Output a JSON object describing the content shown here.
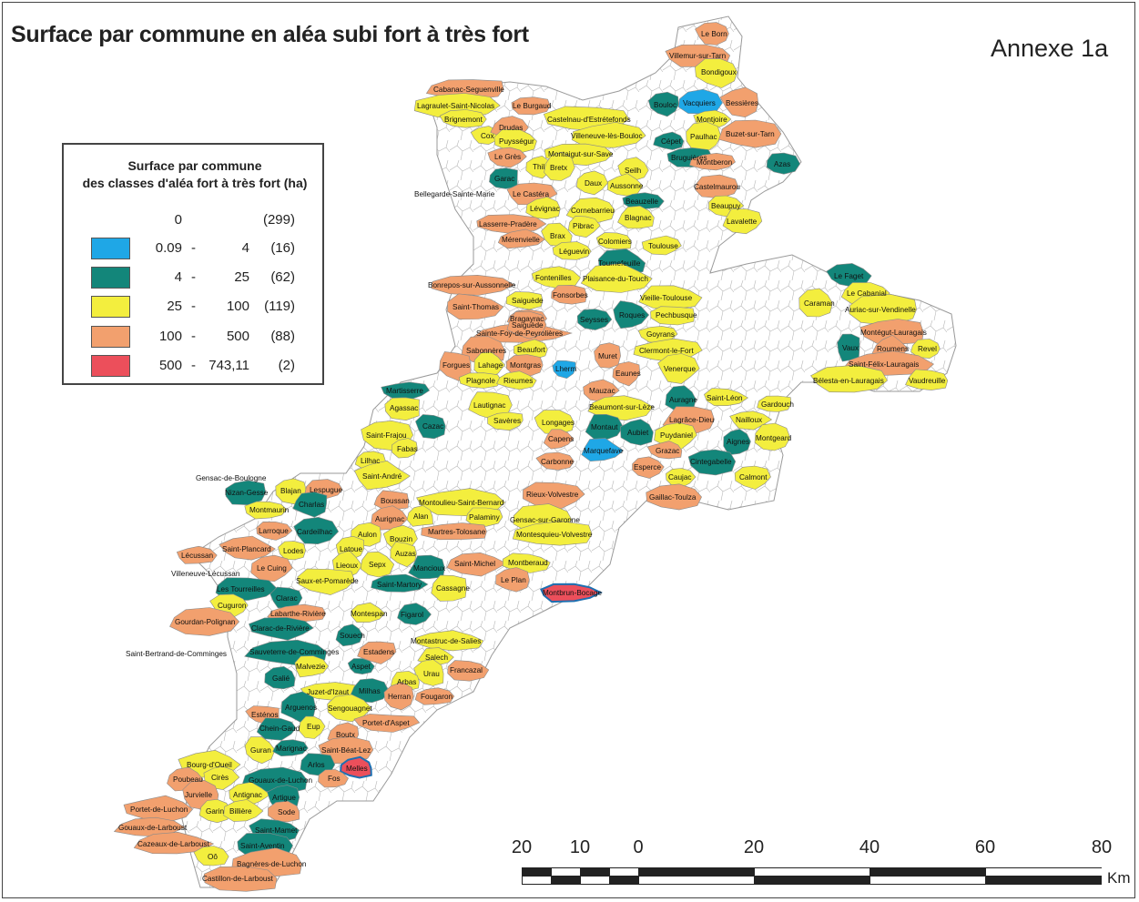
{
  "title": "Surface par commune en aléa subi  fort à très fort",
  "annex": "Annexe 1a",
  "legend": {
    "title_line1": "Surface par commune",
    "title_line2": "des classes d'aléa fort à très fort (ha)",
    "classes": [
      {
        "min": "0",
        "max": "",
        "count": "(299)",
        "color": "#ffffff",
        "swatch": false
      },
      {
        "min": "0.09",
        "max": "4",
        "count": "(16)",
        "color": "#1fa7e6",
        "swatch": true
      },
      {
        "min": "4",
        "max": "25",
        "count": "(62)",
        "color": "#13867a",
        "swatch": true
      },
      {
        "min": "25",
        "max": "100",
        "count": "(119)",
        "color": "#f3ee3e",
        "swatch": true
      },
      {
        "min": "100",
        "max": "500",
        "count": "(88)",
        "color": "#f2a06e",
        "swatch": true
      },
      {
        "min": "500",
        "max": "743,11",
        "count": "(2)",
        "color": "#ec4f5b",
        "swatch": true
      }
    ]
  },
  "communes": [
    {
      "name": "Le Born",
      "cls": 4
    },
    {
      "name": "Villemur-sur-Tarn",
      "cls": 4
    },
    {
      "name": "Bondigoux",
      "cls": 3
    },
    {
      "name": "Cabanac-Seguenville",
      "cls": 4
    },
    {
      "name": "Lagraulet-Saint-Nicolas",
      "cls": 3
    },
    {
      "name": "Le Burgaud",
      "cls": 4
    },
    {
      "name": "Bouloc",
      "cls": 2
    },
    {
      "name": "Vacquiers",
      "cls": 1
    },
    {
      "name": "Bessières",
      "cls": 4
    },
    {
      "name": "Brignemont",
      "cls": 3
    },
    {
      "name": "Castelnau-d'Estrétefonds",
      "cls": 3
    },
    {
      "name": "Montjoire",
      "cls": 3
    },
    {
      "name": "Cox",
      "cls": 3
    },
    {
      "name": "Drudas",
      "cls": 4
    },
    {
      "name": "Villeneuve-lès-Bouloc",
      "cls": 3
    },
    {
      "name": "Paulhac",
      "cls": 3
    },
    {
      "name": "Buzet-sur-Tarn",
      "cls": 4
    },
    {
      "name": "Puysségur",
      "cls": 3
    },
    {
      "name": "Cépet",
      "cls": 2
    },
    {
      "name": "Le Grès",
      "cls": 4
    },
    {
      "name": "Montaigut-sur-Save",
      "cls": 3
    },
    {
      "name": "Bruguières",
      "cls": 2
    },
    {
      "name": "Montberon",
      "cls": 4
    },
    {
      "name": "Azas",
      "cls": 2
    },
    {
      "name": "Thil",
      "cls": 3
    },
    {
      "name": "Bretx",
      "cls": 3
    },
    {
      "name": "Seilh",
      "cls": 3
    },
    {
      "name": "Garac",
      "cls": 2
    },
    {
      "name": "Daux",
      "cls": 3
    },
    {
      "name": "Aussonne",
      "cls": 3
    },
    {
      "name": "Castelmaurou",
      "cls": 4
    },
    {
      "name": "Bellegarde-Sainte-Marie",
      "cls": 0
    },
    {
      "name": "Le Castéra",
      "cls": 4
    },
    {
      "name": "Beauzelle",
      "cls": 2
    },
    {
      "name": "Beaupuy",
      "cls": 3
    },
    {
      "name": "Lévignac",
      "cls": 3
    },
    {
      "name": "Cornebarrieu",
      "cls": 3
    },
    {
      "name": "Blagnac",
      "cls": 3
    },
    {
      "name": "Lavalette",
      "cls": 3
    },
    {
      "name": "Lasserre-Pradère",
      "cls": 4
    },
    {
      "name": "Pibrac",
      "cls": 3
    },
    {
      "name": "Mérenvielle",
      "cls": 4
    },
    {
      "name": "Brax",
      "cls": 3
    },
    {
      "name": "Colomiers",
      "cls": 3
    },
    {
      "name": "Toulouse",
      "cls": 3
    },
    {
      "name": "Léguevin",
      "cls": 3
    },
    {
      "name": "Tournefeuille",
      "cls": 2
    },
    {
      "name": "Fontenilles",
      "cls": 3
    },
    {
      "name": "Plaisance-du-Touch",
      "cls": 3
    },
    {
      "name": "Bonrepos-sur-Aussonnelle",
      "cls": 4
    },
    {
      "name": "Fonsorbes",
      "cls": 4
    },
    {
      "name": "Vieille-Toulouse",
      "cls": 3
    },
    {
      "name": "Saiguède",
      "cls": 3
    },
    {
      "name": "Saint-Thomas",
      "cls": 4
    },
    {
      "name": "Roques",
      "cls": 2
    },
    {
      "name": "Pechbusque",
      "cls": 3
    },
    {
      "name": "Bragayrac",
      "cls": 4
    },
    {
      "name": "Seysses",
      "cls": 2
    },
    {
      "name": "Sainte-Foy-de-Peyrolières",
      "cls": 4
    },
    {
      "name": "Goyrans",
      "cls": 3
    },
    {
      "name": "Saiguède",
      "cls": 4
    },
    {
      "name": "Sabonnères",
      "cls": 4
    },
    {
      "name": "Beaufort",
      "cls": 3
    },
    {
      "name": "Clermont-le-Fort",
      "cls": 3
    },
    {
      "name": "Muret",
      "cls": 4
    },
    {
      "name": "Forgues",
      "cls": 4
    },
    {
      "name": "Lahage",
      "cls": 3
    },
    {
      "name": "Montgras",
      "cls": 4
    },
    {
      "name": "Lherm",
      "cls": 1
    },
    {
      "name": "Venerque",
      "cls": 3
    },
    {
      "name": "Eaunes",
      "cls": 4
    },
    {
      "name": "Plagnole",
      "cls": 3
    },
    {
      "name": "Rieumes",
      "cls": 3
    },
    {
      "name": "Le Faget",
      "cls": 2
    },
    {
      "name": "Le Cabanial",
      "cls": 3
    },
    {
      "name": "Caraman",
      "cls": 3
    },
    {
      "name": "Auriac-sur-Vendinelle",
      "cls": 3
    },
    {
      "name": "Montégut-Lauragais",
      "cls": 4
    },
    {
      "name": "Vaux",
      "cls": 2
    },
    {
      "name": "Roumens",
      "cls": 4
    },
    {
      "name": "Revel",
      "cls": 3
    },
    {
      "name": "Saint-Félix-Lauragais",
      "cls": 4
    },
    {
      "name": "Bélesta-en-Lauragais",
      "cls": 3
    },
    {
      "name": "Vaudreuille",
      "cls": 3
    },
    {
      "name": "Martisserre",
      "cls": 2
    },
    {
      "name": "Agassac",
      "cls": 3
    },
    {
      "name": "Cazac",
      "cls": 2
    },
    {
      "name": "Mauzac",
      "cls": 4
    },
    {
      "name": "Auragne",
      "cls": 2
    },
    {
      "name": "Saint-Léon",
      "cls": 3
    },
    {
      "name": "Gardouch",
      "cls": 3
    },
    {
      "name": "Lautignac",
      "cls": 3
    },
    {
      "name": "Beaumont-sur-Lèze",
      "cls": 3
    },
    {
      "name": "Savères",
      "cls": 3
    },
    {
      "name": "Longages",
      "cls": 3
    },
    {
      "name": "Montaut",
      "cls": 2
    },
    {
      "name": "Lagrâce-Dieu",
      "cls": 4
    },
    {
      "name": "Nailloux",
      "cls": 3
    },
    {
      "name": "Saint-Frajou",
      "cls": 3
    },
    {
      "name": "Aubiet",
      "cls": 2
    },
    {
      "name": "Puydaniel",
      "cls": 3
    },
    {
      "name": "Aignes",
      "cls": 2
    },
    {
      "name": "Montgeard",
      "cls": 3
    },
    {
      "name": "Capens",
      "cls": 4
    },
    {
      "name": "Fabas",
      "cls": 3
    },
    {
      "name": "Marquefave",
      "cls": 1
    },
    {
      "name": "Grazac",
      "cls": 4
    },
    {
      "name": "Lilhac",
      "cls": 3
    },
    {
      "name": "Carbonne",
      "cls": 4
    },
    {
      "name": "Cintegabelle",
      "cls": 2
    },
    {
      "name": "Saint-André",
      "cls": 3
    },
    {
      "name": "Esperce",
      "cls": 4
    },
    {
      "name": "Caujac",
      "cls": 3
    },
    {
      "name": "Calmont",
      "cls": 3
    },
    {
      "name": "Gensac-de-Boulogne",
      "cls": 0
    },
    {
      "name": "Rieux-Volvestre",
      "cls": 4
    },
    {
      "name": "Nizan-Gesse",
      "cls": 2
    },
    {
      "name": "Blajan",
      "cls": 3
    },
    {
      "name": "Lespugue",
      "cls": 4
    },
    {
      "name": "Gaillac-Toulza",
      "cls": 4
    },
    {
      "name": "Boussan",
      "cls": 4
    },
    {
      "name": "Montoulieu-Saint-Bernard",
      "cls": 3
    },
    {
      "name": "Montmaurin",
      "cls": 3
    },
    {
      "name": "Charlas",
      "cls": 2
    },
    {
      "name": "Aurignac",
      "cls": 4
    },
    {
      "name": "Alan",
      "cls": 3
    },
    {
      "name": "Palaminy",
      "cls": 3
    },
    {
      "name": "Gensac-sur-Garonne",
      "cls": 3
    },
    {
      "name": "Larroque",
      "cls": 4
    },
    {
      "name": "Cardeilhac",
      "cls": 2
    },
    {
      "name": "Aulon",
      "cls": 3
    },
    {
      "name": "Bouzin",
      "cls": 3
    },
    {
      "name": "Martres-Tolosane",
      "cls": 4
    },
    {
      "name": "Montesquieu-Volvestre",
      "cls": 3
    },
    {
      "name": "Lécussan",
      "cls": 4
    },
    {
      "name": "Saint-Plancard",
      "cls": 4
    },
    {
      "name": "Lodes",
      "cls": 3
    },
    {
      "name": "Latoue",
      "cls": 3
    },
    {
      "name": "Auzas",
      "cls": 3
    },
    {
      "name": "Le Cuing",
      "cls": 4
    },
    {
      "name": "Lieoux",
      "cls": 3
    },
    {
      "name": "Sepx",
      "cls": 3
    },
    {
      "name": "Mancioux",
      "cls": 2
    },
    {
      "name": "Saint-Michel",
      "cls": 4
    },
    {
      "name": "Montberaud",
      "cls": 3
    },
    {
      "name": "Villeneuve-Lécussan",
      "cls": 0
    },
    {
      "name": "Saux-et-Pomarède",
      "cls": 3
    },
    {
      "name": "Saint-Martory",
      "cls": 2
    },
    {
      "name": "Cassagne",
      "cls": 3
    },
    {
      "name": "Le Plan",
      "cls": 4
    },
    {
      "name": "Montbrun-Bocage",
      "cls": 5
    },
    {
      "name": "Les Tourreilles",
      "cls": 2
    },
    {
      "name": "Clarac",
      "cls": 2
    },
    {
      "name": "Cuguron",
      "cls": 3
    },
    {
      "name": "Labarthe-Rivière",
      "cls": 4
    },
    {
      "name": "Montespan",
      "cls": 3
    },
    {
      "name": "Figarol",
      "cls": 2
    },
    {
      "name": "Gourdan-Polignan",
      "cls": 4
    },
    {
      "name": "Clarac-de-Rivière",
      "cls": 2
    },
    {
      "name": "Souech",
      "cls": 2
    },
    {
      "name": "Montastruc-de-Salies",
      "cls": 3
    },
    {
      "name": "Saint-Bertrand-de-Comminges",
      "cls": 0
    },
    {
      "name": "Sauveterre-de-Comminges",
      "cls": 2
    },
    {
      "name": "Estadens",
      "cls": 4
    },
    {
      "name": "Salech",
      "cls": 3
    },
    {
      "name": "Malvezie",
      "cls": 3
    },
    {
      "name": "Aspet",
      "cls": 2
    },
    {
      "name": "Urau",
      "cls": 3
    },
    {
      "name": "Francazal",
      "cls": 4
    },
    {
      "name": "Galié",
      "cls": 2
    },
    {
      "name": "Arbas",
      "cls": 3
    },
    {
      "name": "Juzet-d'Izaut",
      "cls": 3
    },
    {
      "name": "Milhas",
      "cls": 2
    },
    {
      "name": "Herran",
      "cls": 4
    },
    {
      "name": "Fougaron",
      "cls": 4
    },
    {
      "name": "Arguenos",
      "cls": 2
    },
    {
      "name": "Sengouagnet",
      "cls": 3
    },
    {
      "name": "Esténos",
      "cls": 4
    },
    {
      "name": "Portet-d'Aspet",
      "cls": 4
    },
    {
      "name": "Chein-Gaud",
      "cls": 2
    },
    {
      "name": "Eup",
      "cls": 3
    },
    {
      "name": "Boutx",
      "cls": 4
    },
    {
      "name": "Guran",
      "cls": 3
    },
    {
      "name": "Marignac",
      "cls": 2
    },
    {
      "name": "Saint-Béat-Lez",
      "cls": 4
    },
    {
      "name": "Arlos",
      "cls": 2
    },
    {
      "name": "Melles",
      "cls": 5
    },
    {
      "name": "Bourg-d'Oueil",
      "cls": 3
    },
    {
      "name": "Poubeau",
      "cls": 4
    },
    {
      "name": "Cirès",
      "cls": 3
    },
    {
      "name": "Gouaux-de-Luchon",
      "cls": 2
    },
    {
      "name": "Fos",
      "cls": 4
    },
    {
      "name": "Jurvielle",
      "cls": 4
    },
    {
      "name": "Antignac",
      "cls": 3
    },
    {
      "name": "Artigue",
      "cls": 2
    },
    {
      "name": "Portet-de-Luchon",
      "cls": 4
    },
    {
      "name": "Garin",
      "cls": 3
    },
    {
      "name": "Billière",
      "cls": 3
    },
    {
      "name": "Sode",
      "cls": 4
    },
    {
      "name": "Gouaux-de-Larboust",
      "cls": 4
    },
    {
      "name": "Saint-Mamet",
      "cls": 2
    },
    {
      "name": "Cazeaux-de-Larboust",
      "cls": 4
    },
    {
      "name": "Saint-Aventin",
      "cls": 2
    },
    {
      "name": "Oô",
      "cls": 3
    },
    {
      "name": "Bagnères-de-Luchon",
      "cls": 4
    },
    {
      "name": "Castillon-de-Larboust",
      "cls": 4
    }
  ],
  "scale": {
    "labels": [
      "20",
      "10",
      "0",
      "20",
      "40",
      "60",
      "80"
    ],
    "unit": "Km"
  }
}
